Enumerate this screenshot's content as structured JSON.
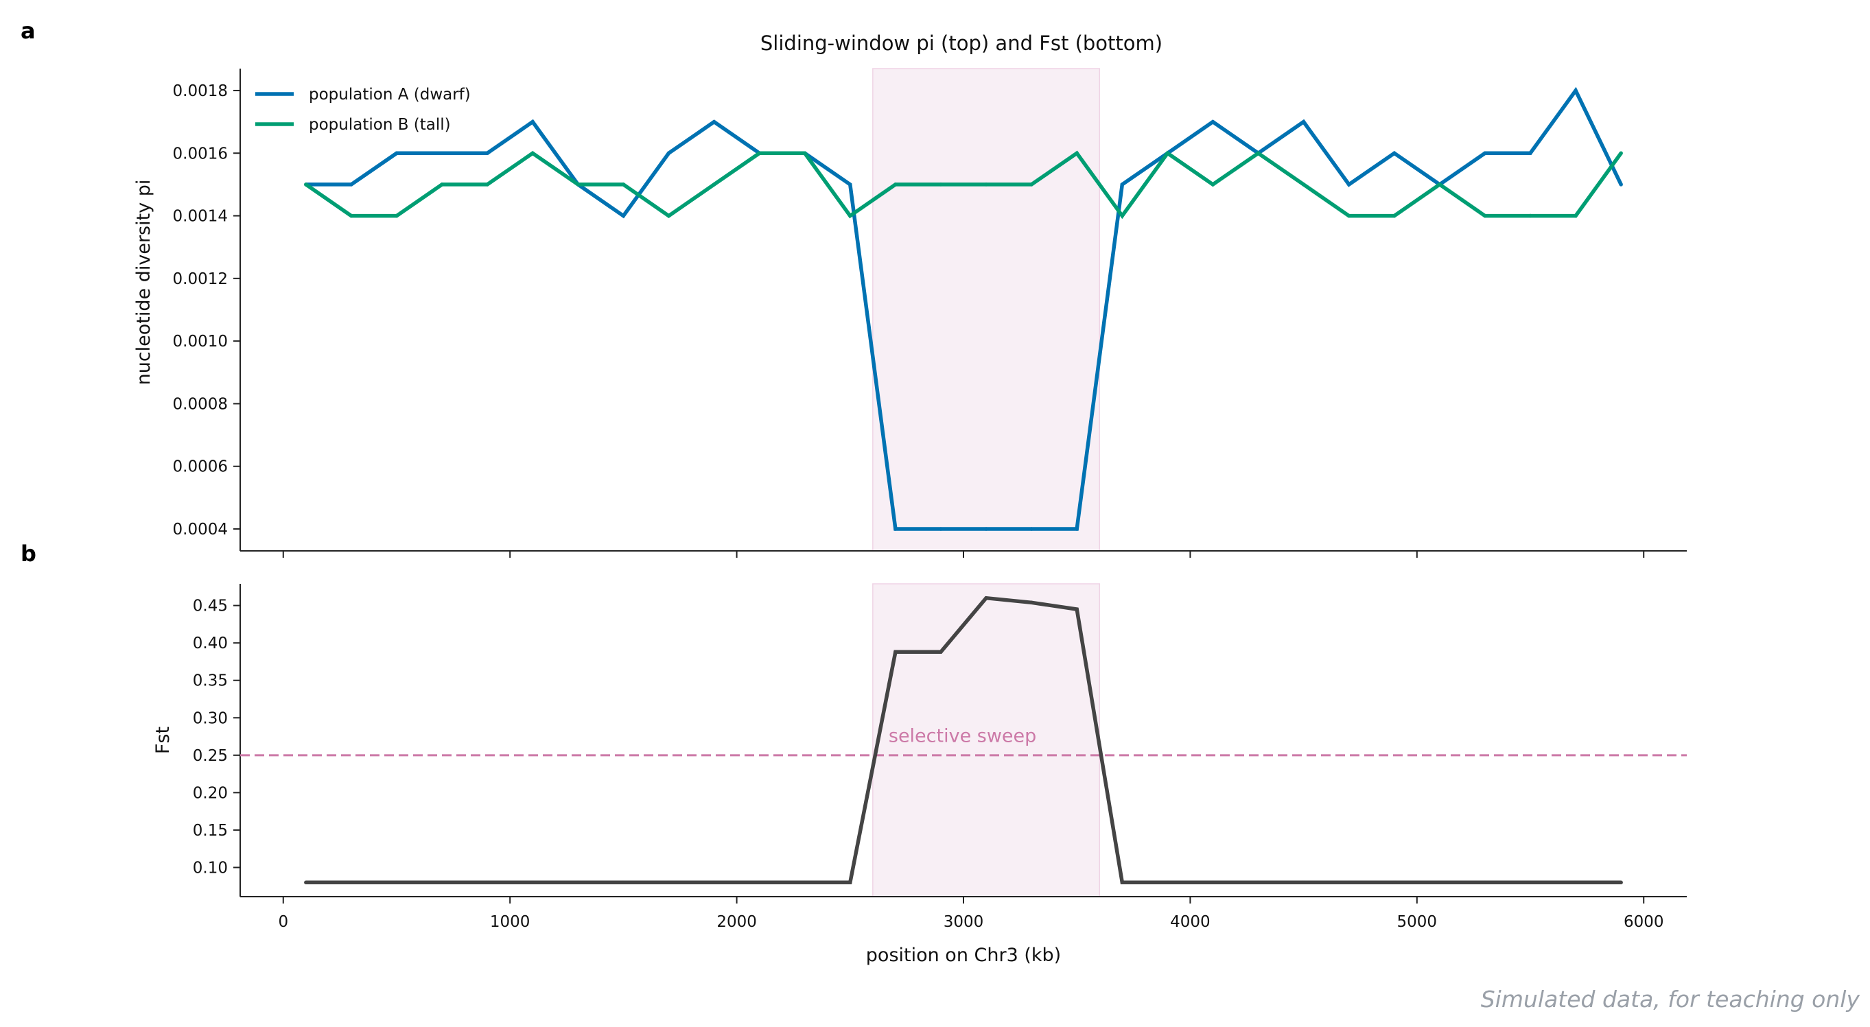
{
  "chart_data": [
    {
      "type": "line",
      "panel": "a",
      "title": "Sliding-window pi (top) and Fst (bottom)",
      "xlabel": "",
      "ylabel": "nucleotide diversity pi",
      "xlim": [
        -190,
        6190
      ],
      "ylim": [
        0.00033,
        0.00187
      ],
      "yticks": [
        0.0004,
        0.0006,
        0.0008,
        0.001,
        0.0012,
        0.0014,
        0.0016,
        0.0018
      ],
      "ytick_labels": [
        "0.0004",
        "0.0006",
        "0.0008",
        "0.0010",
        "0.0012",
        "0.0014",
        "0.0016",
        "0.0018"
      ],
      "xticks": [
        0,
        1000,
        2000,
        3000,
        4000,
        5000,
        6000
      ],
      "x": [
        100,
        300,
        500,
        700,
        900,
        1100,
        1300,
        1500,
        1700,
        1900,
        2100,
        2300,
        2500,
        2700,
        2900,
        3100,
        3300,
        3500,
        3700,
        3900,
        4100,
        4300,
        4500,
        4700,
        4900,
        5100,
        5300,
        5500,
        5700,
        5900
      ],
      "series": [
        {
          "name": "population A (dwarf)",
          "color": "#0072b2",
          "values": [
            0.0015,
            0.0015,
            0.0016,
            0.0016,
            0.0016,
            0.0017,
            0.0015,
            0.0014,
            0.0016,
            0.0017,
            0.0016,
            0.0016,
            0.0015,
            0.0004,
            0.0004,
            0.0004,
            0.0004,
            0.0004,
            0.0015,
            0.0016,
            0.0017,
            0.0016,
            0.0017,
            0.0015,
            0.0016,
            0.0015,
            0.0016,
            0.0016,
            0.0018,
            0.0015
          ]
        },
        {
          "name": "population B (tall)",
          "color": "#009e73",
          "values": [
            0.0015,
            0.0014,
            0.0014,
            0.0015,
            0.0015,
            0.0016,
            0.0015,
            0.0015,
            0.0014,
            0.0015,
            0.0016,
            0.0016,
            0.0014,
            0.0015,
            0.0015,
            0.0015,
            0.0015,
            0.0016,
            0.0014,
            0.0016,
            0.0015,
            0.0016,
            0.0015,
            0.0014,
            0.0014,
            0.0015,
            0.0014,
            0.0014,
            0.0014,
            0.0016
          ]
        }
      ],
      "highlight_region": {
        "x_start": 2600,
        "x_end": 3600,
        "color": "#f8eff5"
      },
      "legend": "top-left",
      "grid": false
    },
    {
      "type": "line",
      "panel": "b",
      "xlabel": "position on Chr3 (kb)",
      "ylabel": "Fst",
      "xlim": [
        -190,
        6190
      ],
      "ylim": [
        0.061,
        0.479
      ],
      "yticks": [
        0.1,
        0.15,
        0.2,
        0.25,
        0.3,
        0.35,
        0.4,
        0.45
      ],
      "ytick_labels": [
        "0.10",
        "0.15",
        "0.20",
        "0.25",
        "0.30",
        "0.35",
        "0.40",
        "0.45"
      ],
      "xticks": [
        0,
        1000,
        2000,
        3000,
        4000,
        5000,
        6000
      ],
      "xtick_labels": [
        "0",
        "1000",
        "2000",
        "3000",
        "4000",
        "5000",
        "6000"
      ],
      "x": [
        100,
        300,
        500,
        700,
        900,
        1100,
        1300,
        1500,
        1700,
        1900,
        2100,
        2300,
        2500,
        2700,
        2900,
        3100,
        3300,
        3500,
        3700,
        3900,
        4100,
        4300,
        4500,
        4700,
        4900,
        5100,
        5300,
        5500,
        5700,
        5900
      ],
      "series": [
        {
          "color": "#444444",
          "values": [
            0.08,
            0.08,
            0.08,
            0.08,
            0.08,
            0.08,
            0.08,
            0.08,
            0.08,
            0.08,
            0.08,
            0.08,
            0.08,
            0.388,
            0.388,
            0.46,
            0.454,
            0.445,
            0.08,
            0.08,
            0.08,
            0.08,
            0.08,
            0.08,
            0.08,
            0.08,
            0.08,
            0.08,
            0.08,
            0.08
          ]
        }
      ],
      "threshold": {
        "y": 0.25,
        "color": "#cc79a7",
        "style": "dashed"
      },
      "highlight_region": {
        "x_start": 2600,
        "x_end": 3600,
        "color": "#f8eff5"
      },
      "annotation": {
        "text": "selective sweep",
        "x": 2700,
        "y": 0.277,
        "color": "#cc79a7"
      },
      "grid": false
    }
  ],
  "panel_labels": [
    "a",
    "b"
  ],
  "footer": {
    "note": "Simulated data, for teaching only"
  }
}
